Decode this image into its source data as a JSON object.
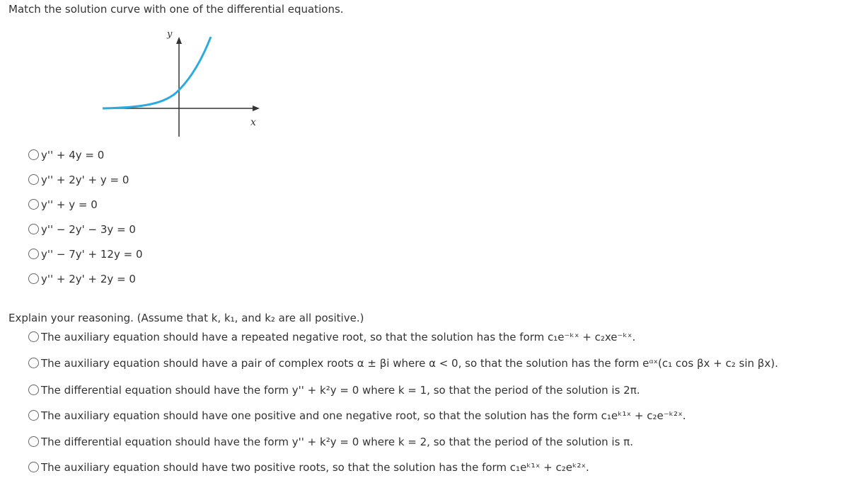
{
  "prompt": "Match the solution curve with one of the differential equations.",
  "graph": {
    "y_label": "y",
    "x_label": "x"
  },
  "equations": [
    "y'' + 4y = 0",
    "y'' + 2y' + y = 0",
    "y'' + y = 0",
    "y'' − 2y' − 3y = 0",
    "y'' − 7y' + 12y = 0",
    "y'' + 2y' + 2y = 0"
  ],
  "reasoning": {
    "prompt": "Explain your reasoning. (Assume that k, k₁, and k₂ are all positive.)",
    "options": [
      "The auxiliary equation should have a repeated negative root, so that the solution has the form c₁e⁻ᵏˣ + c₂xe⁻ᵏˣ.",
      "The auxiliary equation should have a pair of complex roots α ± βi where α < 0, so that the solution has the form eᵅˣ(c₁ cos βx + c₂ sin βx).",
      "The differential equation should have the form y'' + k²y = 0 where k = 1, so that the period of the solution is 2π.",
      "The auxiliary equation should have one positive and one negative root, so that the solution has the form c₁eᵏ¹ˣ + c₂e⁻ᵏ²ˣ.",
      "The differential equation should have the form y'' + k²y = 0 where k = 2, so that the period of the solution is π.",
      "The auxiliary equation should have two positive roots, so that the solution has the form c₁eᵏ¹ˣ + c₂eᵏ²ˣ."
    ]
  }
}
